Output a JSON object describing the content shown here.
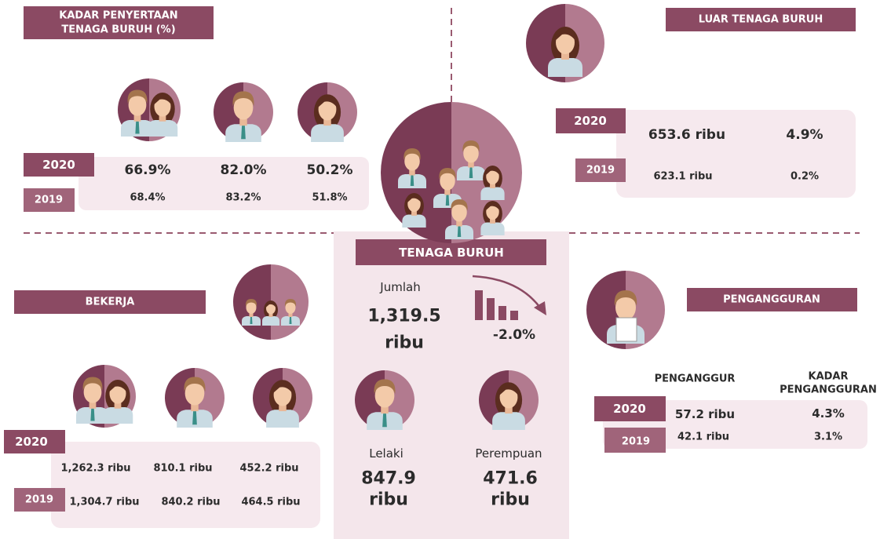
{
  "kadar": {
    "title": [
      "KADAR PENYERTAAN",
      "TENAGA BURUH (%)"
    ],
    "rows": [
      {
        "year": "2020",
        "values": [
          "66.9%",
          "82.0%",
          "50.2%"
        ]
      },
      {
        "year": "2019",
        "values": [
          "68.4%",
          "83.2%",
          "51.8%"
        ]
      }
    ]
  },
  "luar": {
    "title": "LUAR TENAGA BURUH",
    "rows": [
      {
        "year": "2020",
        "values": [
          "653.6 ribu",
          "4.9%"
        ]
      },
      {
        "year": "2019",
        "values": [
          "623.1 ribu",
          "0.2%"
        ]
      }
    ]
  },
  "tenaga": {
    "title": "TENAGA BURUH",
    "total_label": "Jumlah",
    "total": [
      "1,319.5",
      "ribu"
    ],
    "change": "-2.0%",
    "male_label": "Lelaki",
    "male": [
      "847.9",
      "ribu"
    ],
    "female_label": "Perempuan",
    "female": [
      "471.6",
      "ribu"
    ]
  },
  "bekerja": {
    "title": "BEKERJA",
    "rows": [
      {
        "year": "2020",
        "values": [
          "1,262.3 ribu",
          "810.1 ribu",
          "452.2 ribu"
        ]
      },
      {
        "year": "2019",
        "values": [
          "1,304.7 ribu",
          "840.2 ribu",
          "464.5 ribu"
        ]
      }
    ]
  },
  "pengangguran": {
    "title": "PENGANGGURAN",
    "headers": [
      "PENGANGGUR",
      [
        "KADAR",
        "PENGANGGURAN"
      ]
    ],
    "rows": [
      {
        "year": "2020",
        "values": [
          "57.2 ribu",
          "4.3%"
        ]
      },
      {
        "year": "2019",
        "values": [
          "42.1 ribu",
          "3.1%"
        ]
      }
    ]
  }
}
